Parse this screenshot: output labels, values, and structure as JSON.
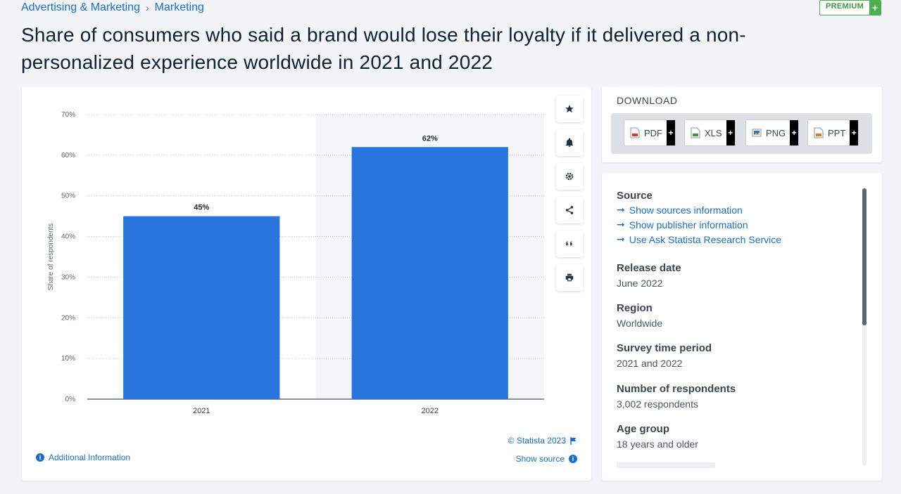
{
  "breadcrumb": {
    "items": [
      "Advertising & Marketing",
      "Marketing"
    ],
    "separator": "›"
  },
  "premium": {
    "label": "PREMIUM",
    "plus": "+"
  },
  "page_title": "Share of consumers who said a brand would lose their loyalty if it delivered a non-personalized experience worldwide in 2021 and 2022",
  "chart_data": {
    "type": "bar",
    "categories": [
      "2021",
      "2022"
    ],
    "values": [
      45,
      62
    ],
    "value_labels": [
      "45%",
      "62%"
    ],
    "ylabel": "Share of respondents",
    "ylim": [
      0,
      70
    ],
    "yticks": [
      0,
      10,
      20,
      30,
      40,
      50,
      60,
      70
    ],
    "ytick_labels": [
      "0%",
      "10%",
      "20%",
      "30%",
      "40%",
      "50%",
      "60%",
      "70%"
    ],
    "grid": true,
    "highlighted_category": "2022",
    "bar_color": "#2876dd"
  },
  "chart_footer": {
    "copyright": "© Statista 2023",
    "show_source": "Show source",
    "additional_info": "Additional Information"
  },
  "tools": [
    "star-icon",
    "bell-icon",
    "gear-icon",
    "share-icon",
    "quote-icon",
    "print-icon"
  ],
  "download": {
    "title": "DOWNLOAD",
    "buttons": [
      {
        "label": "PDF",
        "icon": "pdf-file-icon",
        "color": "#d9352b"
      },
      {
        "label": "XLS",
        "icon": "xls-file-icon",
        "color": "#3a9a3e"
      },
      {
        "label": "PNG",
        "icon": "png-file-icon",
        "color": "#2a73c8"
      },
      {
        "label": "PPT",
        "icon": "ppt-file-icon",
        "color": "#e07b23"
      }
    ],
    "plus": "+"
  },
  "info": {
    "source_heading": "Source",
    "source_links": [
      "Show sources information",
      "Show publisher information",
      "Use Ask Statista Research Service"
    ],
    "release_date": {
      "label": "Release date",
      "value": "June 2022"
    },
    "region": {
      "label": "Region",
      "value": "Worldwide"
    },
    "survey_period": {
      "label": "Survey time period",
      "value": "2021 and 2022"
    },
    "respondents": {
      "label": "Number of respondents",
      "value": "3,002 respondents"
    },
    "age_group": {
      "label": "Age group",
      "value": "18 years and older"
    }
  }
}
